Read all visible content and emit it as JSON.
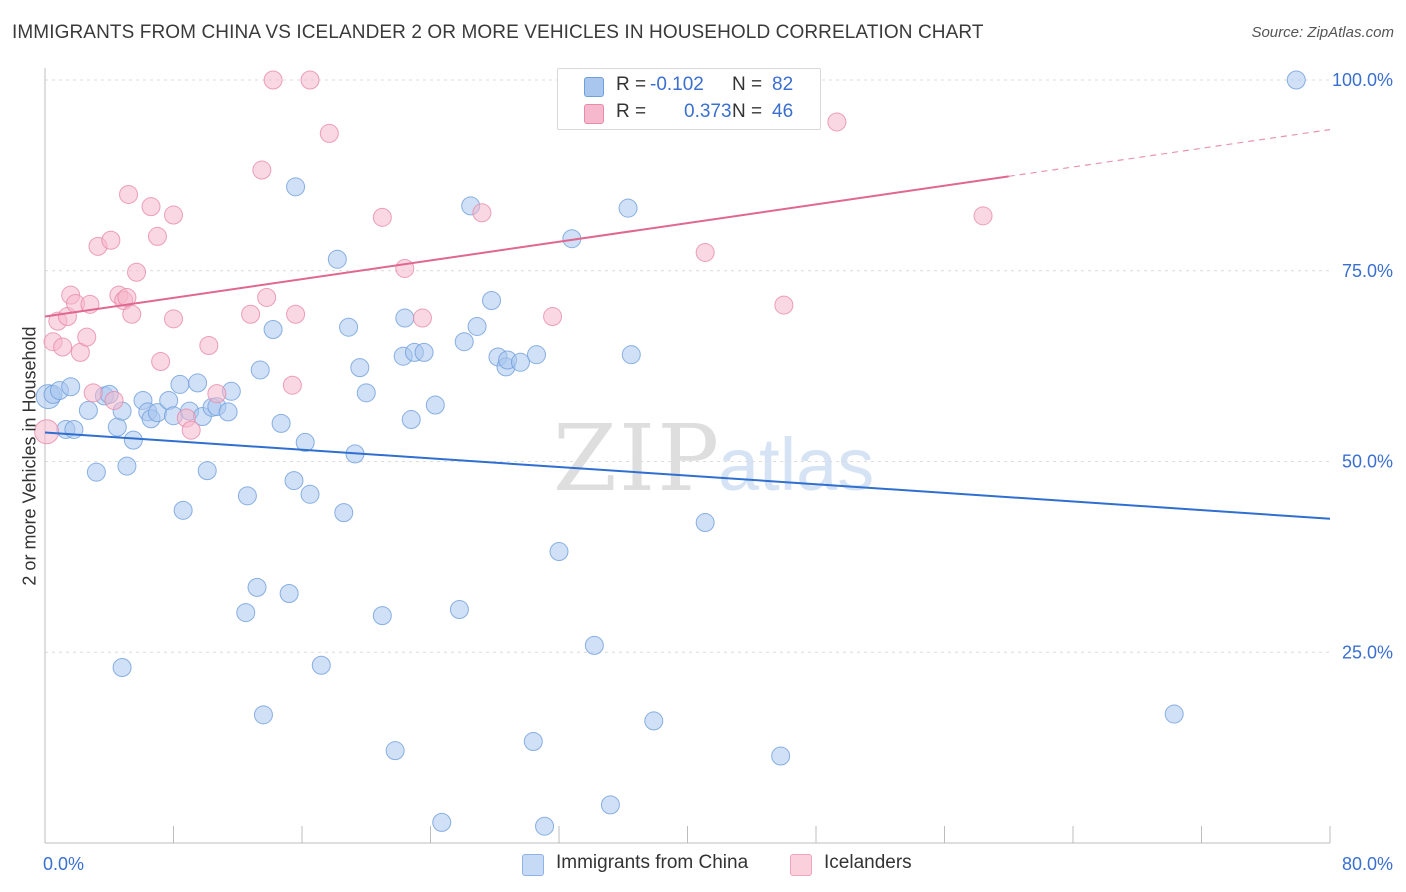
{
  "header": {
    "title": "IMMIGRANTS FROM CHINA VS ICELANDER 2 OR MORE VEHICLES IN HOUSEHOLD CORRELATION CHART",
    "source": "Source: ZipAtlas.com"
  },
  "legend": {
    "series": [
      {
        "r_label": "R =",
        "r_value": "-0.102",
        "n_label": "N =",
        "n_value": "82",
        "color": "#a9c6ef"
      },
      {
        "r_label": "R =",
        "r_value": "0.373",
        "n_label": "N =",
        "n_value": "46",
        "color": "#f6b8cc"
      }
    ]
  },
  "watermark": {
    "zip": "ZIP",
    "atlas": "atlas"
  },
  "colors": {
    "china_fill": "#a9c6ef",
    "china_stroke": "#6f9fdd",
    "china_line": "#2f6fcf",
    "ice_fill": "#f6b8cc",
    "ice_stroke": "#e88aa9",
    "ice_line": "#e0678f",
    "tick_label": "#3a6fd0",
    "grid": "#dcdcdc"
  },
  "chart_data": {
    "type": "scatter",
    "title": "IMMIGRANTS FROM CHINA VS ICELANDER 2 OR MORE VEHICLES IN HOUSEHOLD CORRELATION CHART",
    "xlabel": "",
    "ylabel": "2 or more Vehicles in Household",
    "xlim": [
      0,
      80
    ],
    "ylim": [
      0,
      103
    ],
    "x_ticks": [
      "0.0%",
      "80.0%"
    ],
    "y_ticks": [
      {
        "value": 25,
        "label": "25.0%"
      },
      {
        "value": 50,
        "label": "50.0%"
      },
      {
        "value": 75,
        "label": "75.0%"
      },
      {
        "value": 100,
        "label": "100.0%"
      }
    ],
    "grid": true,
    "legend_position": "top-center",
    "series": [
      {
        "name": "Immigrants from China",
        "r": -0.102,
        "n": 82,
        "trend": {
          "x": [
            0,
            80
          ],
          "y": [
            53.8,
            42.5
          ],
          "dashed_from": null
        },
        "points": [
          [
            0.2,
            58.5
          ],
          [
            0.5,
            58.8
          ],
          [
            0.9,
            59.3
          ],
          [
            1.3,
            54.2
          ],
          [
            1.8,
            54.2
          ],
          [
            2.7,
            56.7
          ],
          [
            3.2,
            48.6
          ],
          [
            3.7,
            58.6
          ],
          [
            4.0,
            58.8
          ],
          [
            4.5,
            54.5
          ],
          [
            4.8,
            56.6
          ],
          [
            5.1,
            49.4
          ],
          [
            5.5,
            52.8
          ],
          [
            6.1,
            58.0
          ],
          [
            6.4,
            56.5
          ],
          [
            6.6,
            55.6
          ],
          [
            7.0,
            56.4
          ],
          [
            7.7,
            58.0
          ],
          [
            8.0,
            56.0
          ],
          [
            8.4,
            60.1
          ],
          [
            8.6,
            43.6
          ],
          [
            9.0,
            56.6
          ],
          [
            9.5,
            60.3
          ],
          [
            9.8,
            55.9
          ],
          [
            10.1,
            48.8
          ],
          [
            10.4,
            57.1
          ],
          [
            10.7,
            57.2
          ],
          [
            11.4,
            56.5
          ],
          [
            11.6,
            59.2
          ],
          [
            12.6,
            45.5
          ],
          [
            12.5,
            30.2
          ],
          [
            13.2,
            33.5
          ],
          [
            13.4,
            62.0
          ],
          [
            13.6,
            16.8
          ],
          [
            14.2,
            67.3
          ],
          [
            14.7,
            55.0
          ],
          [
            15.2,
            32.7
          ],
          [
            15.5,
            47.5
          ],
          [
            15.6,
            86.0
          ],
          [
            16.2,
            52.5
          ],
          [
            16.5,
            45.7
          ],
          [
            17.2,
            23.3
          ],
          [
            18.2,
            76.5
          ],
          [
            18.6,
            43.3
          ],
          [
            18.9,
            67.6
          ],
          [
            19.3,
            51.0
          ],
          [
            19.6,
            62.3
          ],
          [
            20.0,
            59.0
          ],
          [
            21.0,
            29.8
          ],
          [
            21.8,
            12.1
          ],
          [
            22.3,
            63.8
          ],
          [
            22.4,
            68.8
          ],
          [
            22.8,
            55.5
          ],
          [
            23.0,
            64.3
          ],
          [
            23.6,
            64.3
          ],
          [
            24.3,
            57.4
          ],
          [
            24.7,
            2.7
          ],
          [
            25.8,
            30.6
          ],
          [
            26.1,
            65.7
          ],
          [
            26.5,
            83.5
          ],
          [
            26.9,
            67.7
          ],
          [
            27.8,
            71.1
          ],
          [
            28.2,
            63.7
          ],
          [
            28.7,
            62.4
          ],
          [
            28.8,
            63.3
          ],
          [
            29.6,
            63.0
          ],
          [
            30.4,
            13.3
          ],
          [
            30.6,
            64.0
          ],
          [
            31.1,
            2.2
          ],
          [
            32.0,
            38.2
          ],
          [
            32.8,
            79.2
          ],
          [
            34.2,
            25.9
          ],
          [
            35.2,
            5.0
          ],
          [
            36.3,
            83.2
          ],
          [
            36.5,
            64.0
          ],
          [
            37.9,
            16.0
          ],
          [
            41.1,
            42.0
          ],
          [
            45.8,
            11.4
          ],
          [
            70.3,
            16.9
          ],
          [
            77.9,
            100.0
          ],
          [
            4.8,
            23.0
          ],
          [
            1.6,
            59.8
          ]
        ]
      },
      {
        "name": "Icelanders",
        "r": 0.373,
        "n": 46,
        "trend": {
          "x": [
            0,
            80
          ],
          "y": [
            69.0,
            93.5
          ],
          "dashed_from": 60.0
        },
        "points": [
          [
            0.1,
            53.9
          ],
          [
            0.5,
            65.7
          ],
          [
            0.8,
            68.4
          ],
          [
            1.1,
            65.0
          ],
          [
            1.4,
            69.0
          ],
          [
            1.6,
            71.8
          ],
          [
            1.9,
            70.7
          ],
          [
            2.2,
            64.3
          ],
          [
            2.6,
            66.3
          ],
          [
            2.8,
            70.6
          ],
          [
            3.3,
            78.2
          ],
          [
            4.1,
            79.0
          ],
          [
            4.3,
            58.0
          ],
          [
            4.6,
            71.8
          ],
          [
            4.9,
            71.1
          ],
          [
            5.1,
            71.5
          ],
          [
            5.2,
            85.0
          ],
          [
            5.4,
            69.3
          ],
          [
            5.7,
            74.8
          ],
          [
            6.6,
            83.4
          ],
          [
            7.0,
            79.5
          ],
          [
            7.2,
            63.1
          ],
          [
            8.0,
            82.3
          ],
          [
            8.0,
            68.7
          ],
          [
            8.8,
            55.7
          ],
          [
            9.1,
            54.1
          ],
          [
            10.2,
            65.2
          ],
          [
            10.7,
            58.9
          ],
          [
            12.8,
            69.3
          ],
          [
            13.5,
            88.2
          ],
          [
            13.8,
            71.5
          ],
          [
            14.2,
            100.0
          ],
          [
            15.4,
            60.0
          ],
          [
            15.6,
            69.3
          ],
          [
            16.5,
            100.0
          ],
          [
            17.7,
            93.0
          ],
          [
            21.0,
            82.0
          ],
          [
            22.4,
            75.3
          ],
          [
            23.5,
            68.8
          ],
          [
            27.2,
            82.6
          ],
          [
            31.6,
            69.0
          ],
          [
            41.1,
            77.4
          ],
          [
            46.0,
            70.5
          ],
          [
            49.3,
            94.5
          ],
          [
            58.4,
            82.2
          ],
          [
            3.0,
            59.0
          ]
        ]
      }
    ]
  },
  "bottom_legend": {
    "items": [
      "Immigrants from China",
      "Icelanders"
    ]
  }
}
